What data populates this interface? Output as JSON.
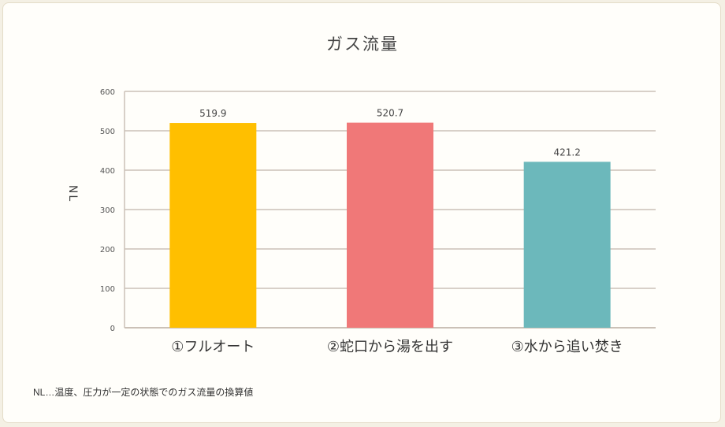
{
  "chart_data": {
    "type": "bar",
    "title": "ガス流量",
    "ylabel": "NL",
    "ylim": [
      0,
      600
    ],
    "yticks": [
      "0",
      "100",
      "200",
      "300",
      "400",
      "500",
      "600"
    ],
    "categories": [
      "①フルオート",
      "②蛇口から湯を出す",
      "③水から追い焚き"
    ],
    "values": [
      519.9,
      520.7,
      421.2
    ],
    "data_labels": [
      "519.9",
      "520.7",
      "421.2"
    ],
    "colors": [
      "#ffbf00",
      "#f07878",
      "#6cb8bb"
    ],
    "grid": true,
    "grid_color": "#cbc1b7",
    "legend": "none"
  },
  "footnote": "NL…温度、圧力が一定の状態でのガス流量の換算値"
}
